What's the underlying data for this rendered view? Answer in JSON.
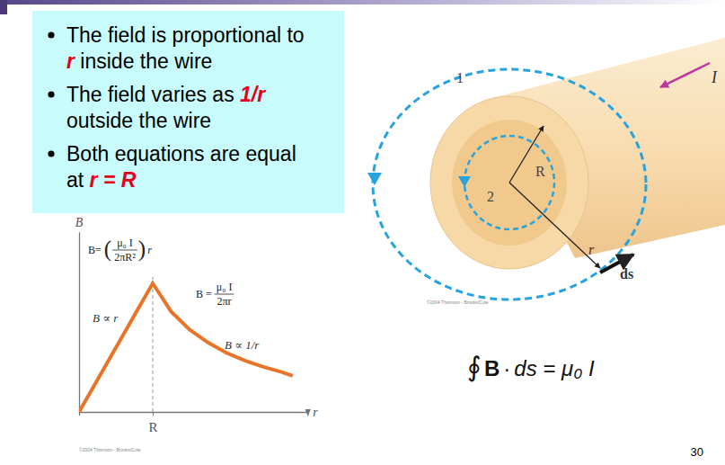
{
  "slide": {
    "bullets": [
      {
        "lines": [
          [
            {
              "text": "The field is proportional to"
            }
          ],
          [
            {
              "text": "r",
              "highlight": true
            },
            {
              "text": " inside the wire"
            }
          ]
        ]
      },
      {
        "lines": [
          [
            {
              "text": "The field varies as "
            },
            {
              "text": "1/r",
              "highlight": true
            }
          ],
          [
            {
              "text": "outside the wire"
            }
          ]
        ]
      },
      {
        "lines": [
          [
            {
              "text": "Both equations are equal"
            }
          ],
          [
            {
              "text": "at "
            },
            {
              "text": "r = R",
              "highlight": true
            }
          ]
        ]
      }
    ],
    "page_number": "30"
  },
  "chart_data": {
    "type": "line",
    "x_label": "r",
    "y_label": "B",
    "x": [
      0,
      0.25,
      0.5,
      0.75,
      1,
      1.25,
      1.5,
      1.75,
      2,
      2.25,
      2.5,
      2.75,
      2.9
    ],
    "values": [
      0,
      0.25,
      0.5,
      0.75,
      1,
      0.78,
      0.64,
      0.54,
      0.46,
      0.4,
      0.35,
      0.31,
      0.28
    ],
    "color": "#e8742a",
    "xlim": [
      0,
      3.1
    ],
    "ylim": [
      0,
      1.4
    ],
    "xticks": [
      {
        "value": 1,
        "label": "R"
      }
    ],
    "yticks": [],
    "tick_labels": "x",
    "formulas": [
      {
        "lhs": "B=",
        "open": "(",
        "numerator": "μ₀ I",
        "denominator": "2πR²",
        "close": ")",
        "rhs": "r"
      },
      {
        "lhs": "B =",
        "numerator": "μ₀ I",
        "denominator": "2πr"
      }
    ],
    "annotations": [
      "B ∝ r",
      "B ∝ 1/r"
    ],
    "credit": "©2004 Thomson - Brooks/Cole"
  },
  "diagram": {
    "loop_labels": [
      "1",
      "2"
    ],
    "current": "I",
    "radius": "R",
    "loop_radius": "r",
    "element": "ds",
    "credit": "©2004 Thomson - Brooks/Cole"
  },
  "equation": {
    "integral": "∮",
    "field": "B",
    "dot": "·",
    "rest": "ds = μ₀ I"
  }
}
